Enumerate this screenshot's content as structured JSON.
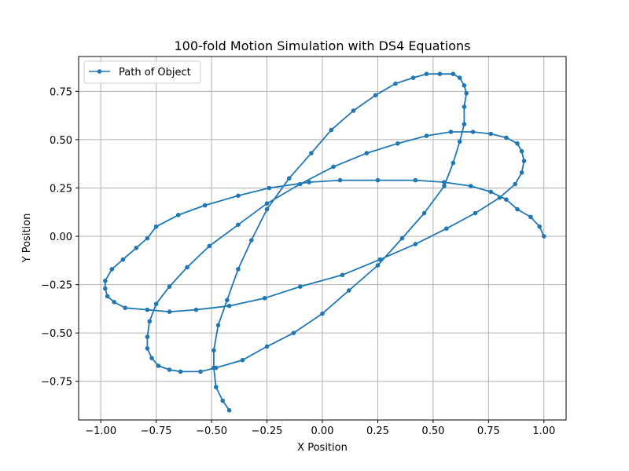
{
  "chart_data": {
    "type": "line",
    "title": "100-fold Motion Simulation with DS4 Equations",
    "xlabel": "X Position",
    "ylabel": "Y Position",
    "xlim": [
      -1.1,
      1.1
    ],
    "ylim": [
      -0.95,
      0.93
    ],
    "xticks": [
      -1.0,
      -0.75,
      -0.5,
      -0.25,
      0.0,
      0.25,
      0.5,
      0.75,
      1.0
    ],
    "yticks": [
      -0.75,
      -0.5,
      -0.25,
      0.0,
      0.25,
      0.5,
      0.75
    ],
    "xtick_labels": [
      "−1.00",
      "−0.75",
      "−0.50",
      "−0.25",
      "0.00",
      "0.25",
      "0.50",
      "0.75",
      "1.00"
    ],
    "ytick_labels": [
      "−0.75",
      "−0.50",
      "−0.25",
      "0.00",
      "0.25",
      "0.50",
      "0.75"
    ],
    "grid": true,
    "legend_position": "upper-left",
    "color": "#1f77b4",
    "series": [
      {
        "name": "Path of Object",
        "x": [
          1.0,
          0.98,
          0.94,
          0.88,
          0.83,
          0.76,
          0.67,
          0.55,
          0.42,
          0.25,
          0.08,
          -0.06,
          -0.24,
          -0.38,
          -0.53,
          -0.65,
          -0.75,
          -0.79,
          -0.84,
          -0.9,
          -0.95,
          -0.98,
          -0.98,
          -0.97,
          -0.94,
          -0.89,
          -0.79,
          -0.69,
          -0.57,
          -0.42,
          -0.26,
          -0.1,
          0.09,
          0.26,
          0.42,
          0.56,
          0.69,
          0.8,
          0.87,
          0.9,
          0.91,
          0.9,
          0.88,
          0.83,
          0.76,
          0.68,
          0.58,
          0.47,
          0.34,
          0.2,
          0.05,
          -0.1,
          -0.25,
          -0.38,
          -0.51,
          -0.61,
          -0.69,
          -0.75,
          -0.78,
          -0.79,
          -0.79,
          -0.77,
          -0.74,
          -0.69,
          -0.64,
          -0.55,
          -0.48,
          -0.36,
          -0.25,
          -0.13,
          0.0,
          0.12,
          0.25,
          0.36,
          0.46,
          0.55,
          0.59,
          0.62,
          0.64,
          0.64,
          0.65,
          0.64,
          0.62,
          0.59,
          0.53,
          0.47,
          0.41,
          0.33,
          0.24,
          0.14,
          0.04,
          -0.05,
          -0.15,
          -0.25,
          -0.32,
          -0.38,
          -0.43,
          -0.47,
          -0.49,
          -0.49,
          -0.48,
          -0.45,
          -0.42
        ],
        "y": [
          0.0,
          0.05,
          0.1,
          0.14,
          0.19,
          0.23,
          0.26,
          0.28,
          0.29,
          0.29,
          0.29,
          0.28,
          0.25,
          0.21,
          0.16,
          0.11,
          0.05,
          -0.01,
          -0.06,
          -0.12,
          -0.17,
          -0.23,
          -0.27,
          -0.31,
          -0.34,
          -0.37,
          -0.38,
          -0.39,
          -0.38,
          -0.36,
          -0.32,
          -0.26,
          -0.2,
          -0.12,
          -0.04,
          0.04,
          0.12,
          0.2,
          0.27,
          0.33,
          0.39,
          0.44,
          0.48,
          0.51,
          0.53,
          0.54,
          0.54,
          0.52,
          0.48,
          0.43,
          0.36,
          0.27,
          0.17,
          0.06,
          -0.05,
          -0.16,
          -0.26,
          -0.35,
          -0.44,
          -0.52,
          -0.58,
          -0.63,
          -0.67,
          -0.69,
          -0.7,
          -0.7,
          -0.68,
          -0.64,
          -0.57,
          -0.5,
          -0.4,
          -0.28,
          -0.15,
          -0.01,
          0.12,
          0.26,
          0.38,
          0.49,
          0.58,
          0.67,
          0.74,
          0.78,
          0.82,
          0.84,
          0.84,
          0.84,
          0.82,
          0.79,
          0.73,
          0.65,
          0.55,
          0.43,
          0.3,
          0.14,
          -0.02,
          -0.17,
          -0.33,
          -0.46,
          -0.59,
          -0.68,
          -0.78,
          -0.85,
          -0.9
        ]
      }
    ]
  }
}
